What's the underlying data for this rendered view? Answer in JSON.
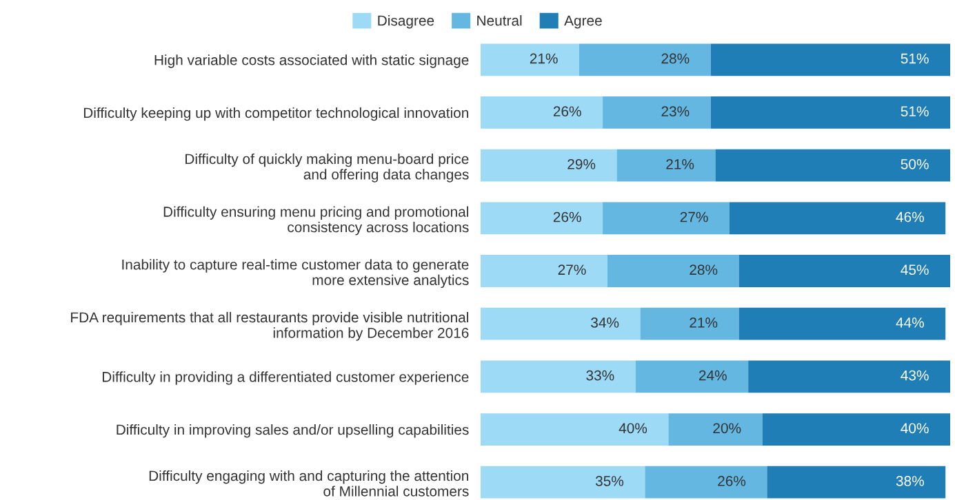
{
  "chart_data": {
    "type": "bar",
    "orientation": "horizontal",
    "stacked": true,
    "legend": "top",
    "grid": false,
    "tick_labels": "y",
    "categories": [
      "High variable costs associated with static signage",
      "Difficulty keeping up with competitor technological innovation",
      "Difficulty of quickly making menu-board price\nand offering data changes",
      "Difficulty ensuring menu pricing and promotional\nconsistency across locations",
      "Inability to capture real-time customer data to generate\nmore extensive analytics",
      "FDA requirements that all restaurants provide visible nutritional\ninformation by December 2016",
      "Difficulty in providing a differentiated customer experience",
      "Difficulty in improving sales and/or upselling capabilities",
      "Difficulty engaging with and capturing the attention\nof Millennial customers"
    ],
    "series": [
      {
        "name": "Disagree",
        "color": "#9cdaf6",
        "values": [
          21,
          26,
          29,
          26,
          27,
          34,
          33,
          40,
          35
        ],
        "value_labels": [
          "21%",
          "26%",
          "29%",
          "26%",
          "27%",
          "34%",
          "33%",
          "40%",
          "35%"
        ]
      },
      {
        "name": "Neutral",
        "color": "#63b7e1",
        "values": [
          28,
          23,
          21,
          27,
          28,
          21,
          24,
          20,
          26
        ],
        "value_labels": [
          "28%",
          "23%",
          "21%",
          "27%",
          "28%",
          "21%",
          "24%",
          "20%",
          "26%"
        ]
      },
      {
        "name": "Agree",
        "color": "#1f7eb5",
        "values": [
          51,
          51,
          50,
          46,
          45,
          44,
          43,
          40,
          38
        ],
        "value_labels": [
          "51%",
          "51%",
          "50%",
          "46%",
          "45%",
          "44%",
          "43%",
          "40%",
          "38%"
        ]
      }
    ]
  }
}
